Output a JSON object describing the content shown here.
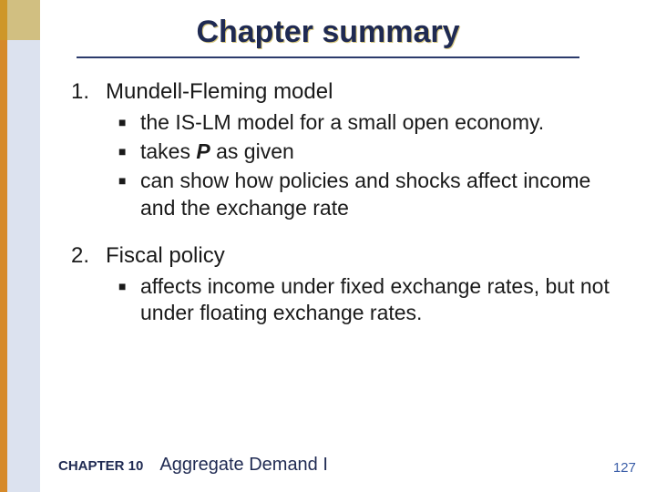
{
  "colors": {
    "title": "#1f2a52",
    "rule": "#2b3a6b",
    "stripe_orange": "#d68a2a",
    "stripe_blue": "#3b5ea8",
    "corner": "#c9a227",
    "body_text": "#1a1a1a",
    "footer_text": "#1f2a52",
    "page_num": "#3b5ea8"
  },
  "title": "Chapter summary",
  "items": [
    {
      "num": "1.",
      "label": "Mundell-Fleming model",
      "subs": [
        {
          "pre": "the IS-LM model for a small open economy."
        },
        {
          "pre": "takes ",
          "ital": "P",
          "post": " as given"
        },
        {
          "pre": "can show how policies and shocks affect income and the exchange rate"
        }
      ]
    },
    {
      "num": "2.",
      "label": "Fiscal policy",
      "subs": [
        {
          "pre": "affects income under fixed exchange rates, but not under floating exchange rates."
        }
      ]
    }
  ],
  "footer": {
    "chapter": "CHAPTER 10",
    "title": "Aggregate Demand I",
    "page": "127"
  }
}
